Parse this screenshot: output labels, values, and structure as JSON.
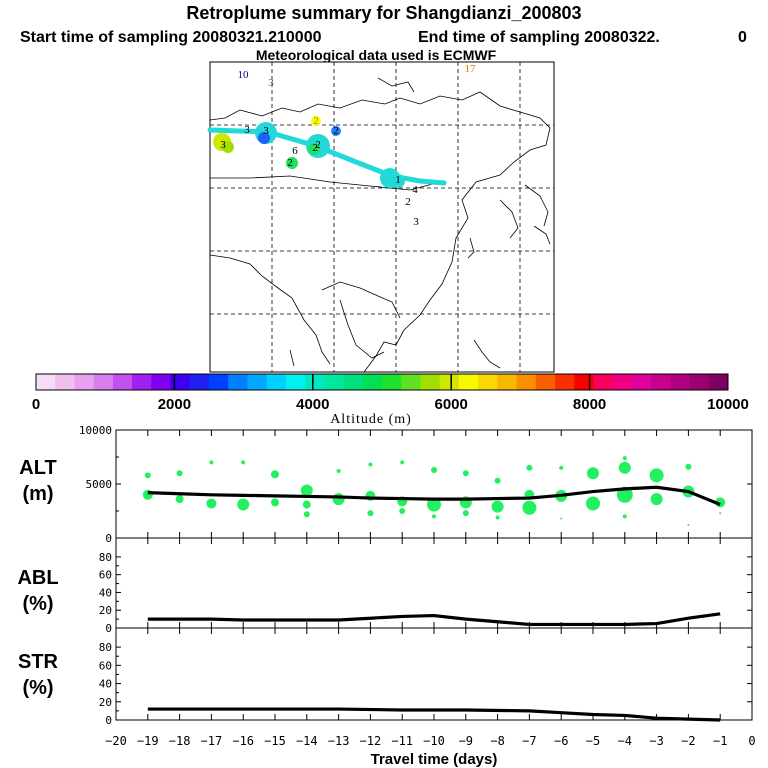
{
  "header": {
    "title": "Retroplume summary for Shangdianzi_200803",
    "start_time": "Start time of sampling 20080321.210000",
    "end_time": "End time of sampling 20080322.",
    "end_time_suffix": "0",
    "met_data": "Meteorological data used is ECMWF"
  },
  "map": {
    "labels": [
      {
        "text": "10",
        "color": "#000080"
      },
      {
        "text": "3",
        "color": "#1a8a1a"
      },
      {
        "text": "17",
        "color": "#e07800"
      },
      {
        "text": "2",
        "color": "#a0a000"
      },
      {
        "text": "3",
        "color": "#000000"
      },
      {
        "text": "3",
        "color": "#000000"
      },
      {
        "text": "3",
        "color": "#000000"
      },
      {
        "text": "2",
        "color": "#000000"
      },
      {
        "text": "2",
        "color": "#000000"
      },
      {
        "text": "6",
        "color": "#000000"
      },
      {
        "text": "2",
        "color": "#000000"
      },
      {
        "text": "2",
        "color": "#000000"
      },
      {
        "text": "1",
        "color": "#000000"
      },
      {
        "text": "4",
        "color": "#000000"
      },
      {
        "text": "2",
        "color": "#000000"
      },
      {
        "text": "3",
        "color": "#000000"
      }
    ]
  },
  "colorbar": {
    "ticks": [
      "0",
      "2000",
      "4000",
      "6000",
      "8000",
      "10000"
    ],
    "label": "Altitude (m)",
    "colors": [
      "#f6dcf6",
      "#f0c0f0",
      "#e8a0f0",
      "#d880f0",
      "#c050f0",
      "#a020f0",
      "#8000f0",
      "#4000f0",
      "#2020f0",
      "#0040ff",
      "#0080ff",
      "#00a8ff",
      "#00d0ff",
      "#00f0f0",
      "#00e8c0",
      "#00e8a0",
      "#00e080",
      "#00e050",
      "#20e030",
      "#60e020",
      "#a0e000",
      "#d0e800",
      "#f8f800",
      "#f8d800",
      "#f8b800",
      "#f89000",
      "#f86000",
      "#f83000",
      "#f80000",
      "#f80060",
      "#f00080",
      "#e000a0",
      "#c80090",
      "#b00080",
      "#980070",
      "#800060"
    ]
  },
  "chart_data": [
    {
      "type": "line",
      "panel": "ALT",
      "ylabel_line1": "ALT",
      "ylabel_line2": "(m)",
      "x": [
        -19,
        -18,
        -17,
        -16,
        -15,
        -14,
        -13,
        -12,
        -11,
        -10,
        -9,
        -8,
        -7,
        -6,
        -5,
        -4,
        -3,
        -2,
        -1
      ],
      "values": [
        4200,
        4100,
        4000,
        3950,
        3900,
        3850,
        3800,
        3700,
        3650,
        3600,
        3600,
        3650,
        3700,
        3950,
        4300,
        4550,
        4700,
        4300,
        3100
      ],
      "ylim": [
        0,
        10000
      ],
      "yticks": [
        "10000",
        "5000",
        "0"
      ],
      "scatter": [
        {
          "x": -19,
          "y": 5800,
          "s": 3
        },
        {
          "x": -19,
          "y": 4000,
          "s": 5
        },
        {
          "x": -18,
          "y": 6000,
          "s": 3
        },
        {
          "x": -18,
          "y": 3600,
          "s": 4
        },
        {
          "x": -17,
          "y": 7000,
          "s": 2
        },
        {
          "x": -17,
          "y": 3200,
          "s": 5
        },
        {
          "x": -16,
          "y": 7000,
          "s": 2
        },
        {
          "x": -16,
          "y": 3100,
          "s": 6
        },
        {
          "x": -15,
          "y": 5900,
          "s": 4
        },
        {
          "x": -15,
          "y": 3300,
          "s": 4
        },
        {
          "x": -14,
          "y": 4400,
          "s": 6
        },
        {
          "x": -14,
          "y": 3100,
          "s": 4
        },
        {
          "x": -14,
          "y": 2200,
          "s": 3
        },
        {
          "x": -13,
          "y": 6200,
          "s": 2
        },
        {
          "x": -13,
          "y": 3600,
          "s": 6
        },
        {
          "x": -12,
          "y": 6800,
          "s": 2
        },
        {
          "x": -12,
          "y": 3900,
          "s": 5
        },
        {
          "x": -12,
          "y": 2300,
          "s": 3
        },
        {
          "x": -11,
          "y": 7000,
          "s": 2
        },
        {
          "x": -11,
          "y": 3400,
          "s": 5
        },
        {
          "x": -11,
          "y": 2500,
          "s": 3
        },
        {
          "x": -10,
          "y": 6300,
          "s": 3
        },
        {
          "x": -10,
          "y": 3100,
          "s": 7
        },
        {
          "x": -10,
          "y": 2000,
          "s": 2
        },
        {
          "x": -9,
          "y": 6000,
          "s": 3
        },
        {
          "x": -9,
          "y": 3300,
          "s": 6
        },
        {
          "x": -9,
          "y": 2300,
          "s": 3
        },
        {
          "x": -8,
          "y": 5300,
          "s": 3
        },
        {
          "x": -8,
          "y": 2900,
          "s": 6
        },
        {
          "x": -8,
          "y": 1900,
          "s": 2
        },
        {
          "x": -7,
          "y": 6500,
          "s": 3
        },
        {
          "x": -7,
          "y": 4000,
          "s": 5
        },
        {
          "x": -7,
          "y": 2800,
          "s": 7
        },
        {
          "x": -6,
          "y": 6500,
          "s": 2
        },
        {
          "x": -6,
          "y": 3900,
          "s": 6
        },
        {
          "x": -6,
          "y": 1800,
          "s": 1
        },
        {
          "x": -5,
          "y": 6000,
          "s": 6
        },
        {
          "x": -5,
          "y": 3200,
          "s": 7
        },
        {
          "x": -4,
          "y": 7400,
          "s": 2
        },
        {
          "x": -4,
          "y": 6500,
          "s": 6
        },
        {
          "x": -4,
          "y": 4000,
          "s": 8
        },
        {
          "x": -4,
          "y": 2000,
          "s": 2
        },
        {
          "x": -3,
          "y": 5800,
          "s": 7
        },
        {
          "x": -3,
          "y": 3600,
          "s": 6
        },
        {
          "x": -2,
          "y": 6600,
          "s": 3
        },
        {
          "x": -2,
          "y": 4300,
          "s": 6
        },
        {
          "x": -2,
          "y": 1200,
          "s": 1
        },
        {
          "x": -1,
          "y": 3300,
          "s": 5
        },
        {
          "x": -1,
          "y": 2300,
          "s": 1
        }
      ]
    },
    {
      "type": "line",
      "panel": "ABL",
      "ylabel_line1": "ABL",
      "ylabel_line2": "(%)",
      "x": [
        -19,
        -17,
        -16,
        -15,
        -14,
        -13,
        -12,
        -11,
        -10,
        -9,
        -8,
        -7,
        -6,
        -5,
        -4,
        -3,
        -2,
        -1
      ],
      "values": [
        10,
        10,
        9,
        9,
        9,
        9,
        11,
        13,
        14,
        10,
        7,
        4,
        4,
        4,
        4,
        5,
        11,
        16
      ],
      "ylim": [
        0,
        90
      ],
      "yticks": [
        "80",
        "60",
        "40",
        "20",
        "0"
      ]
    },
    {
      "type": "line",
      "panel": "STR",
      "ylabel_line1": "STR",
      "ylabel_line2": "(%)",
      "x": [
        -19,
        -17,
        -15,
        -13,
        -11,
        -9,
        -7,
        -6,
        -5,
        -4,
        -3,
        -2,
        -1
      ],
      "values": [
        12,
        12,
        12,
        12,
        11,
        11,
        10,
        8,
        6,
        5,
        2,
        1,
        0
      ],
      "ylim": [
        0,
        90
      ],
      "yticks": [
        "80",
        "60",
        "40",
        "20",
        "0"
      ],
      "xticks": [
        "−20",
        "−19",
        "−18",
        "−17",
        "−16",
        "−15",
        "−14",
        "−13",
        "−12",
        "−11",
        "−10",
        "−9",
        "−8",
        "−7",
        "−6",
        "−5",
        "−4",
        "−3",
        "−2",
        "−1",
        "0"
      ],
      "xlabel": "Travel time (days)"
    }
  ]
}
